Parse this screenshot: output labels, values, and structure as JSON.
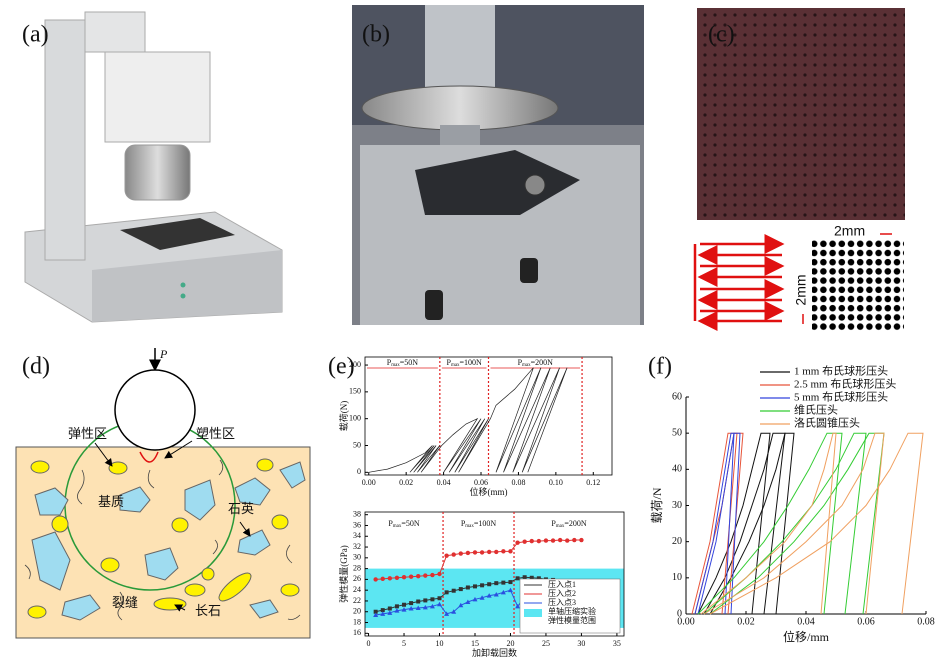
{
  "panel_labels": [
    "(a)",
    "(b)",
    "(c)",
    "(d)",
    "(e)",
    "(f)"
  ],
  "panel_c": {
    "scale_labels": [
      "2mm",
      "2mm"
    ]
  },
  "panel_d": {
    "load": "P",
    "labels": [
      "弹性区",
      "塑性区",
      "基质",
      "石英",
      "裂缝",
      "长石"
    ]
  },
  "chart_data": [
    {
      "type": "line",
      "xlabel": "位移(mm)",
      "ylabel": "载荷(N)",
      "xlim": [
        -0.002,
        0.13
      ],
      "ylim": [
        -5,
        215
      ],
      "xticks": [
        {
          "value": 0,
          "label": "0.00"
        },
        {
          "value": 0.02,
          "label": "0.02"
        },
        {
          "value": 0.04,
          "label": "0.04"
        },
        {
          "value": 0.06,
          "label": "0.06"
        },
        {
          "value": 0.08,
          "label": "0.08"
        },
        {
          "value": 0.1,
          "label": "0.10"
        },
        {
          "value": 0.12,
          "label": "0.12"
        }
      ],
      "yticks": [
        0,
        50,
        100,
        150,
        200
      ],
      "dividers": [
        0.038,
        0.064,
        0.114
      ],
      "divider_color": "#e02020",
      "annotations": [
        {
          "base": "P",
          "sub": "max",
          "rest": "=50N"
        },
        {
          "base": "P",
          "sub": "max",
          "rest": "=100N"
        },
        {
          "base": "P",
          "sub": "max",
          "rest": "=200N"
        }
      ],
      "series": [
        {
          "color": "#222222",
          "x": [
            0,
            0.01,
            0.02,
            0.03,
            0.034,
            0.022,
            0.035,
            0.024,
            0.036,
            0.026,
            0.038,
            0.028,
            0.039,
            0.045,
            0.052,
            0.058,
            0.04,
            0.06,
            0.043,
            0.062,
            0.046,
            0.064,
            0.048,
            0.065,
            0.068,
            0.078,
            0.088,
            0.068,
            0.092,
            0.072,
            0.097,
            0.077,
            0.102,
            0.082,
            0.106,
            0.085
          ],
          "values": [
            0,
            6,
            18,
            36,
            50,
            0,
            50,
            0,
            50,
            0,
            50,
            0,
            50,
            70,
            90,
            100,
            0,
            100,
            0,
            100,
            0,
            100,
            0,
            100,
            125,
            155,
            195,
            0,
            195,
            0,
            195,
            0,
            195,
            0,
            195,
            0
          ]
        }
      ]
    },
    {
      "type": "line",
      "xlabel": "加卸载回数",
      "ylabel": "弹性模量(GPa)",
      "xlim": [
        -0.5,
        36
      ],
      "ylim": [
        15.5,
        38.5
      ],
      "xticks": [
        0,
        5,
        10,
        15,
        20,
        25,
        30,
        35
      ],
      "yticks": [
        16,
        18,
        20,
        22,
        24,
        26,
        28,
        30,
        32,
        34,
        36,
        38
      ],
      "dividers": [
        10.5,
        20.5
      ],
      "divider_color": "#e02020",
      "annotations": [
        {
          "base": "P",
          "sub": "max",
          "rest": "=50N"
        },
        {
          "base": "P",
          "sub": "max",
          "rest": "=100N"
        },
        {
          "base": "P",
          "sub": "max",
          "rest": "=200N"
        }
      ],
      "band": {
        "name_lines": [
          "单轴压缩实验",
          "弹性模量范围"
        ],
        "range": [
          17,
          28
        ],
        "color": "#5ce6f2"
      },
      "x": [
        1,
        2,
        3,
        4,
        5,
        6,
        7,
        8,
        9,
        10,
        11,
        12,
        13,
        14,
        15,
        16,
        17,
        18,
        19,
        20,
        21,
        22,
        23,
        24,
        25,
        26,
        27,
        28,
        29,
        30
      ],
      "series": [
        {
          "name": "压入点1",
          "color": "#333333",
          "marker": "square",
          "values": [
            20.0,
            20.3,
            20.6,
            21.0,
            21.3,
            21.6,
            21.9,
            22.1,
            22.3,
            22.5,
            23.6,
            23.9,
            24.2,
            24.5,
            24.7,
            24.9,
            25.1,
            25.3,
            25.4,
            25.5,
            26.2,
            26.4,
            26.3,
            26.2,
            26.0,
            25.9,
            25.7,
            25.6,
            25.4,
            25.2
          ]
        },
        {
          "name": "压入点2",
          "color": "#e03030",
          "marker": "circle",
          "values": [
            26.0,
            26.1,
            26.2,
            26.3,
            26.4,
            26.5,
            26.6,
            26.7,
            26.8,
            27.0,
            30.4,
            30.6,
            30.8,
            30.9,
            31.0,
            31.0,
            31.1,
            31.1,
            31.2,
            31.2,
            32.8,
            33.0,
            33.1,
            33.1,
            33.2,
            33.2,
            33.3,
            33.2,
            33.3,
            33.3
          ]
        },
        {
          "name": "压入点3",
          "color": "#2a50e0",
          "marker": "triangle",
          "values": [
            19.4,
            19.6,
            19.8,
            20.2,
            20.4,
            20.6,
            20.7,
            20.8,
            21.0,
            21.4,
            19.6,
            20.0,
            21.2,
            21.8,
            22.3,
            22.6,
            23.0,
            23.2,
            23.6,
            24.0,
            21.0,
            22.6,
            23.2,
            23.6,
            23.8,
            24.0,
            24.2,
            24.3,
            24.4,
            24.5
          ]
        }
      ]
    },
    {
      "type": "line",
      "xlabel": "位移/mm",
      "ylabel": "载荷/N",
      "xlim": [
        0,
        0.08
      ],
      "ylim": [
        0,
        60
      ],
      "xticks": [
        {
          "value": 0,
          "label": "0.00"
        },
        {
          "value": 0.02,
          "label": "0.02"
        },
        {
          "value": 0.04,
          "label": "0.04"
        },
        {
          "value": 0.06,
          "label": "0.06"
        },
        {
          "value": 0.08,
          "label": "0.08"
        }
      ],
      "yticks": [
        0,
        10,
        20,
        30,
        40,
        50,
        60
      ],
      "series": [
        {
          "name": "1 mm 布氏球形压头",
          "color": "#111111",
          "curves": [
            {
              "x": [
                0.004,
                0.01,
                0.015,
                0.019,
                0.022,
                0.025,
                0.028,
                0.022
              ],
              "y": [
                0,
                10,
                20,
                30,
                40,
                50,
                50,
                0
              ]
            },
            {
              "x": [
                0.006,
                0.013,
                0.018,
                0.022,
                0.026,
                0.029,
                0.033,
                0.026
              ],
              "y": [
                0,
                10,
                20,
                30,
                40,
                50,
                50,
                0
              ]
            },
            {
              "x": [
                0.008,
                0.015,
                0.021,
                0.026,
                0.03,
                0.033,
                0.036,
                0.03
              ],
              "y": [
                0,
                10,
                20,
                30,
                40,
                50,
                50,
                0
              ]
            }
          ]
        },
        {
          "name": "2.5 mm 布氏球形压头",
          "color": "#e8553a",
          "curves": [
            {
              "x": [
                0.002,
                0.005,
                0.008,
                0.01,
                0.012,
                0.014,
                0.017,
                0.012
              ],
              "y": [
                0,
                10,
                20,
                30,
                40,
                50,
                50,
                0
              ]
            },
            {
              "x": [
                0.003,
                0.006,
                0.009,
                0.012,
                0.014,
                0.016,
                0.019,
                0.014
              ],
              "y": [
                0,
                10,
                20,
                30,
                40,
                50,
                50,
                0
              ]
            }
          ]
        },
        {
          "name": "5 mm 布氏球形压头",
          "color": "#3344dd",
          "curves": [
            {
              "x": [
                0.003,
                0.006,
                0.009,
                0.011,
                0.013,
                0.015,
                0.016,
                0.013
              ],
              "y": [
                0,
                10,
                20,
                30,
                40,
                50,
                50,
                0
              ]
            },
            {
              "x": [
                0.004,
                0.007,
                0.01,
                0.012,
                0.014,
                0.016,
                0.018,
                0.015
              ],
              "y": [
                0,
                10,
                20,
                30,
                40,
                50,
                50,
                0
              ]
            }
          ]
        },
        {
          "name": "维氏压头",
          "color": "#33cc33",
          "curves": [
            {
              "x": [
                0.004,
                0.016,
                0.026,
                0.034,
                0.041,
                0.047,
                0.052,
                0.046
              ],
              "y": [
                0,
                10,
                20,
                30,
                40,
                50,
                50,
                0
              ]
            },
            {
              "x": [
                0.006,
                0.02,
                0.032,
                0.042,
                0.05,
                0.056,
                0.06,
                0.053
              ],
              "y": [
                0,
                10,
                20,
                30,
                40,
                50,
                50,
                0
              ]
            },
            {
              "x": [
                0.008,
                0.024,
                0.036,
                0.046,
                0.054,
                0.061,
                0.066,
                0.059
              ],
              "y": [
                0,
                10,
                20,
                30,
                40,
                50,
                50,
                0
              ]
            }
          ]
        },
        {
          "name": "洛氏圆锥压头",
          "color": "#f0a060",
          "curves": [
            {
              "x": [
                0.005,
                0.02,
                0.033,
                0.042,
                0.046,
                0.049,
                0.05,
                0.045
              ],
              "y": [
                0,
                10,
                20,
                30,
                40,
                50,
                50,
                0
              ]
            },
            {
              "x": [
                0.006,
                0.026,
                0.04,
                0.052,
                0.059,
                0.063,
                0.066,
                0.06
              ],
              "y": [
                0,
                10,
                20,
                30,
                40,
                50,
                50,
                0
              ]
            },
            {
              "x": [
                0.008,
                0.03,
                0.048,
                0.06,
                0.068,
                0.074,
                0.079,
                0.072
              ],
              "y": [
                0,
                10,
                20,
                30,
                40,
                50,
                50,
                0
              ]
            }
          ]
        }
      ]
    }
  ]
}
